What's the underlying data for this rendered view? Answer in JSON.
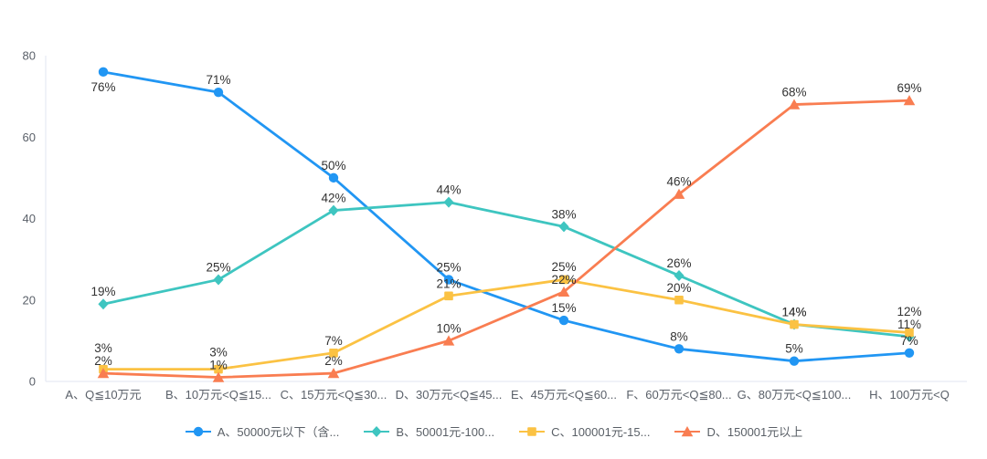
{
  "chart_data": {
    "type": "line",
    "categories": [
      "A、Q≦10万元",
      "B、10万元<Q≦15...",
      "C、15万元<Q≦30...",
      "D、30万元<Q≦45...",
      "E、45万元<Q≦60...",
      "F、60万元<Q≦80...",
      "G、80万元<Q≦100...",
      "H、100万元<Q"
    ],
    "series": [
      {
        "name": "A、50000元以下（含...",
        "color": "#2196f3",
        "marker": "circle",
        "values": [
          76,
          71,
          50,
          25,
          15,
          8,
          5,
          7
        ]
      },
      {
        "name": "B、50001元-100...",
        "color": "#3ec5c0",
        "marker": "diamond",
        "values": [
          19,
          25,
          42,
          44,
          38,
          26,
          14,
          11
        ]
      },
      {
        "name": "C、100001元-15...",
        "color": "#fbc243",
        "marker": "square",
        "values": [
          3,
          3,
          7,
          21,
          25,
          20,
          14,
          12
        ]
      },
      {
        "name": "D、150001元以上",
        "color": "#f97d51",
        "marker": "triangle",
        "values": [
          2,
          1,
          2,
          10,
          22,
          46,
          68,
          69
        ]
      }
    ],
    "label_suffix": "%",
    "xlabel": "",
    "ylabel": "",
    "y_axis": {
      "ticks": [
        0,
        20,
        40,
        60,
        80
      ],
      "max": 80
    },
    "grid": false,
    "legend_position": "bottom"
  },
  "style": {
    "axis_line_color": "#e2e6f0",
    "tick_label_color": "#5a6069",
    "data_label_color": "#333333",
    "legend_text_color": "#595f66",
    "background_color": "#ffffff"
  }
}
